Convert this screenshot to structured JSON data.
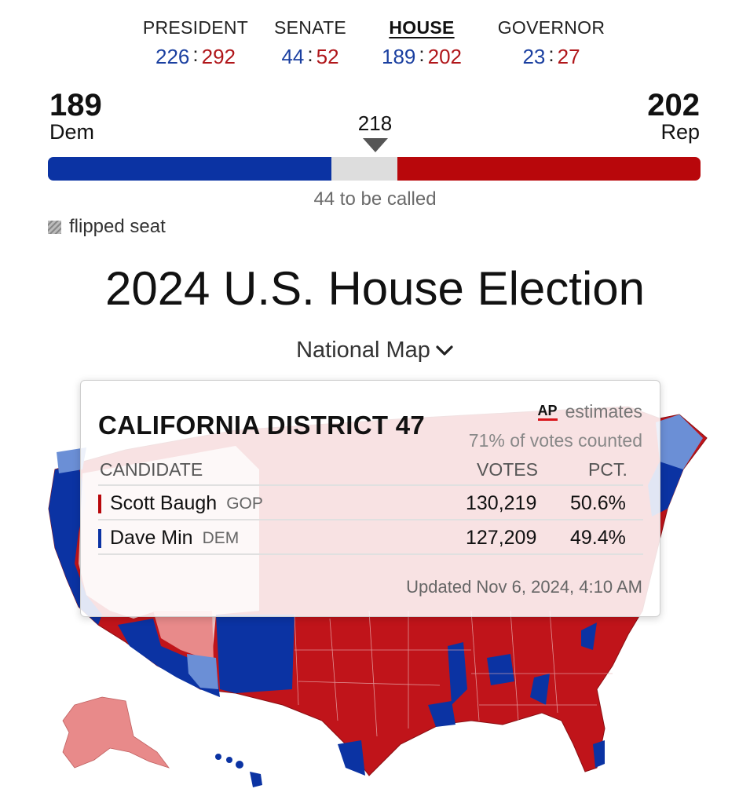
{
  "tabs": [
    {
      "label": "PRESIDENT",
      "dem": "226",
      "rep": "292",
      "active": false
    },
    {
      "label": "SENATE",
      "dem": "44",
      "rep": "52",
      "active": false
    },
    {
      "label": "HOUSE",
      "dem": "189",
      "rep": "202",
      "active": true
    },
    {
      "label": "GOVERNOR",
      "dem": "23",
      "rep": "27",
      "active": false
    }
  ],
  "tally": {
    "dem_seats": "189",
    "dem_label": "Dem",
    "rep_seats": "202",
    "rep_label": "Rep",
    "majority": "218",
    "to_be_called": "44 to be called",
    "dem_count": 189,
    "rep_count": 202,
    "uncalled_count": 44,
    "colors": {
      "dem": "#0b33a3",
      "rep": "#b8070b",
      "uncalled": "#dddddd"
    }
  },
  "legend": {
    "flipped": "flipped seat"
  },
  "title": "2024 U.S. House Election",
  "view_selector": {
    "label": "National Map"
  },
  "tooltip": {
    "district": "CALIFORNIA DISTRICT 47",
    "source_logo": "AP",
    "source_text": "estimates",
    "counted": "71% of votes counted",
    "col_candidate": "CANDIDATE",
    "col_votes": "VOTES",
    "col_pct": "PCT.",
    "rows": [
      {
        "name": "Scott Baugh",
        "party": "GOP",
        "votes": "130,219",
        "pct": "50.6%",
        "color": "#b8070b"
      },
      {
        "name": "Dave Min",
        "party": "DEM",
        "votes": "127,209",
        "pct": "49.4%",
        "color": "#0b33a3"
      }
    ],
    "updated": "Updated Nov 6, 2024, 4:10 AM"
  }
}
